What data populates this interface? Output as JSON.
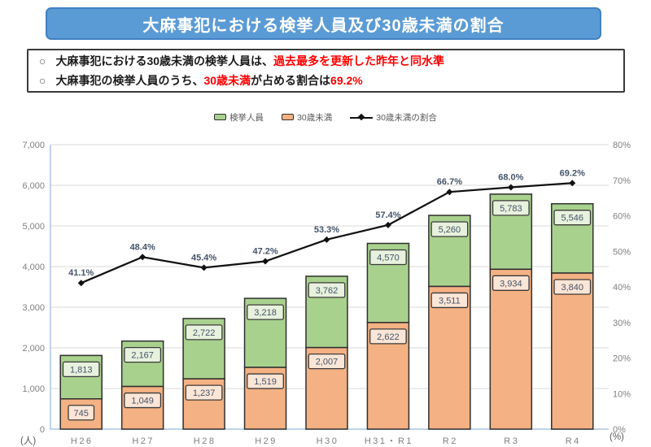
{
  "header": {
    "title": "大麻事犯における検挙人員及び30歳未満の割合"
  },
  "callouts": [
    {
      "prefix": "○",
      "parts": [
        {
          "text": "大麻事犯における30歳未満の検挙人員は、",
          "red": false
        },
        {
          "text": "過去最多を更新した昨年と同水準",
          "red": true
        }
      ]
    },
    {
      "prefix": "○",
      "parts": [
        {
          "text": "大麻事犯の検挙人員のうち、",
          "red": false
        },
        {
          "text": "30歳未満",
          "red": true
        },
        {
          "text": "が占める割合は",
          "red": false
        },
        {
          "text": "69.2%",
          "red": true
        }
      ]
    }
  ],
  "chart_data": {
    "type": "bar+line",
    "categories": [
      "H26",
      "H27",
      "H28",
      "H29",
      "H30",
      "H31・R1",
      "R2",
      "R3",
      "R4"
    ],
    "series": [
      {
        "name": "検挙人員",
        "type": "bar-total",
        "axis": "left",
        "values": [
          1813,
          2167,
          2722,
          3218,
          3762,
          4570,
          5260,
          5783,
          5546
        ]
      },
      {
        "name": "30歳未満",
        "type": "bar-part",
        "axis": "left",
        "values": [
          745,
          1049,
          1237,
          1519,
          2007,
          2622,
          3511,
          3934,
          3840
        ]
      },
      {
        "name": "30歳未満の割合",
        "type": "line",
        "axis": "right",
        "values": [
          41.1,
          48.4,
          45.4,
          47.2,
          53.3,
          57.4,
          66.7,
          68.0,
          69.2
        ]
      }
    ],
    "left_axis": {
      "min": 0,
      "max": 7000,
      "step": 1000,
      "unit": "(人)"
    },
    "right_axis": {
      "min": 0,
      "max": 80,
      "step": 10,
      "unit": "(%)",
      "tick_suffix": "%"
    },
    "legend": [
      {
        "label": "検挙人員",
        "swatch": "box",
        "color": "#A9D18E"
      },
      {
        "label": "30歳未満",
        "swatch": "box",
        "color": "#F4B183"
      },
      {
        "label": "30歳未満の割合",
        "swatch": "line",
        "color": "#111111"
      }
    ],
    "grid": true,
    "legend_position": "top",
    "stacking": "part-within-total"
  },
  "colors": {
    "title_bg": "#5B9BD5",
    "title_border": "#4081C2",
    "highlight_red": "#FF0000",
    "bar_green": "#A9D18E",
    "bar_orange": "#F4B183",
    "label_bg_green": "#E7F1DD",
    "label_bg_orange": "#FBE5D6",
    "bar_border": "#2F2F2F",
    "line": "#111111",
    "pct_label": "#44546A",
    "axis_line": "#A8C6E4",
    "gridline": "#D9D9D9",
    "tick_label": "#7F7F7F",
    "legend_text": "#595959"
  }
}
